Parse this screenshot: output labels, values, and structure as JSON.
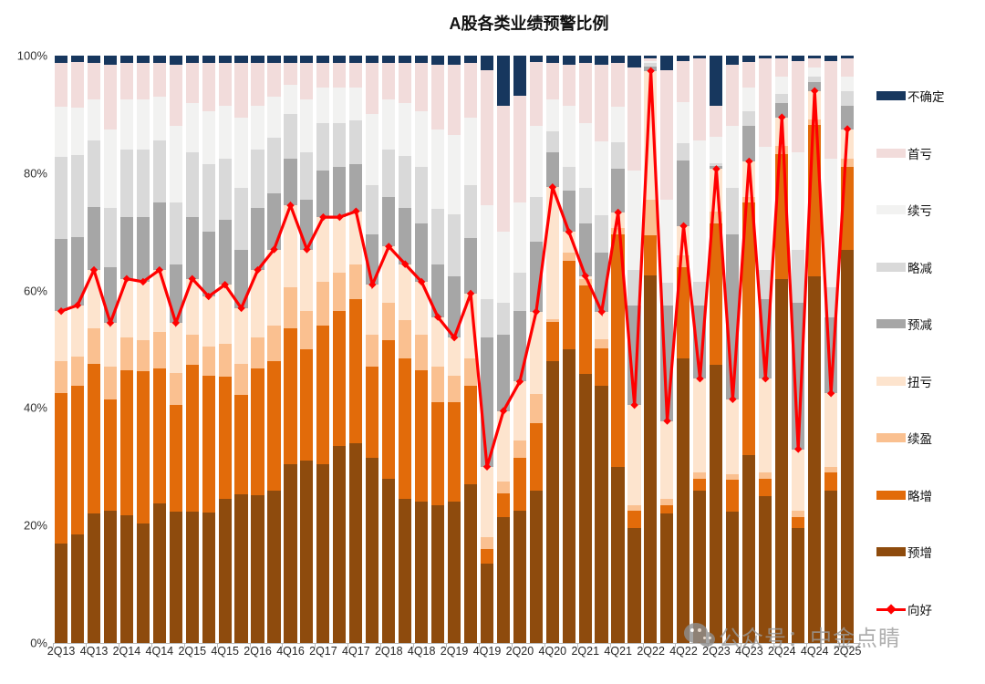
{
  "title": "A股各类业绩预警比例",
  "watermark": {
    "icon": "wechat-icon",
    "text": "公众号：中金点睛"
  },
  "chart_data": {
    "type": "bar",
    "variant": "stacked-100pct-with-line",
    "title": "A股各类业绩预警比例",
    "unit": "%",
    "ylim": [
      0,
      100
    ],
    "grid": false,
    "legend_position": "right",
    "y_tick_labels": [
      "0%",
      "20%",
      "40%",
      "60%",
      "80%",
      "100%"
    ],
    "y_tick_values": [
      0,
      20,
      40,
      60,
      80,
      100
    ],
    "x_tick_every": 2,
    "categories": [
      "2Q13",
      "3Q13",
      "4Q13",
      "1Q14",
      "2Q14",
      "3Q14",
      "4Q14",
      "1Q15",
      "2Q15",
      "3Q15",
      "4Q15",
      "1Q16",
      "2Q16",
      "3Q16",
      "4Q16",
      "1Q17",
      "2Q17",
      "3Q17",
      "4Q17",
      "1Q18",
      "2Q18",
      "3Q18",
      "4Q18",
      "1Q19",
      "2Q19",
      "3Q19",
      "4Q19",
      "1Q20",
      "2Q20",
      "3Q20",
      "4Q20",
      "1Q21",
      "2Q21",
      "3Q21",
      "4Q21",
      "1Q22",
      "2Q22",
      "3Q22",
      "4Q22",
      "1Q23",
      "2Q23",
      "3Q23",
      "4Q23",
      "1Q24",
      "2Q24",
      "3Q24",
      "4Q24",
      "1Q25",
      "2Q25"
    ],
    "series": [
      {
        "name": "预增",
        "color": "#8E4B0D",
        "values": [
          17,
          18.5,
          22,
          22.5,
          21.7,
          20.4,
          23.7,
          22.3,
          22.3,
          22.2,
          24.5,
          25.3,
          25.1,
          26,
          30.5,
          31,
          30.5,
          33.5,
          34,
          31.5,
          28,
          24.5,
          24,
          23.5,
          24,
          27,
          13.5,
          21.5,
          22.5,
          26,
          48,
          50,
          45.8,
          43.8,
          30,
          19.5,
          62.6,
          22,
          48.4,
          26,
          47.4,
          22.3,
          32,
          25,
          62,
          19.5,
          62.4,
          26,
          67
        ]
      },
      {
        "name": "略增",
        "color": "#E26B0A",
        "values": [
          25.5,
          25.3,
          25.5,
          19,
          24.7,
          25.8,
          23.1,
          18.3,
          25,
          23.3,
          20.9,
          17,
          21.7,
          22,
          23,
          19,
          23.5,
          23,
          24.5,
          15.5,
          23.5,
          24,
          22.5,
          17.5,
          17,
          16.8,
          2.5,
          4,
          9,
          11.5,
          6.6,
          15,
          15.1,
          6.4,
          39.6,
          3,
          6.8,
          1.5,
          15.6,
          2,
          24,
          5.5,
          43,
          3,
          21.2,
          2,
          25.8,
          3,
          14
        ]
      },
      {
        "name": "续盈",
        "color": "#FAC090",
        "values": [
          5.5,
          5,
          6,
          5.5,
          5.6,
          5.3,
          6.2,
          5.4,
          5.2,
          5,
          5.6,
          5.2,
          5.2,
          6,
          7,
          6.5,
          7.5,
          6.5,
          6,
          5.5,
          6.5,
          6.5,
          6,
          6,
          4.5,
          4.7,
          2,
          2,
          3,
          4.9,
          0.5,
          1.5,
          1,
          1.5,
          1,
          1,
          6,
          1,
          2,
          1,
          2,
          1,
          1,
          1,
          1.5,
          1,
          1,
          1,
          1.5
        ]
      },
      {
        "name": "扭亏",
        "color": "#FDE4CE",
        "values": [
          8.5,
          8.7,
          10,
          7.5,
          10,
          10,
          10.5,
          8.5,
          9.5,
          8.5,
          10,
          9.5,
          11.5,
          13,
          14,
          10.5,
          11,
          9.5,
          9,
          8.5,
          9.5,
          9.5,
          9,
          8.5,
          6.5,
          11,
          12,
          12,
          10,
          14,
          22.5,
          3.5,
          0.6,
          4.7,
          2.7,
          17,
          22,
          13.3,
          5,
          16,
          7.3,
          12.7,
          6,
          16,
          4.8,
          10.5,
          4.8,
          12.5,
          5
        ]
      },
      {
        "name": "预减",
        "color": "#A6A6A6",
        "values": [
          12.3,
          11.6,
          10.8,
          9.5,
          10.5,
          11,
          11.5,
          10,
          10.5,
          11,
          11,
          10,
          10.5,
          9.5,
          8,
          8.5,
          8,
          8.5,
          8,
          8.5,
          8.5,
          9.5,
          10,
          9,
          10.5,
          9.5,
          22,
          13,
          12,
          12,
          6,
          7,
          9,
          10,
          7.5,
          17,
          0.8,
          19.7,
          11.1,
          12.5,
          0.5,
          28,
          6,
          13.5,
          2.5,
          25,
          1.5,
          13,
          4
        ]
      },
      {
        "name": "略减",
        "color": "#D9D9D9",
        "values": [
          14,
          14,
          11.2,
          10,
          11.5,
          11.5,
          10.5,
          10.5,
          11,
          11.5,
          10.5,
          10.5,
          10,
          9.5,
          7.5,
          8,
          8,
          7.5,
          7.5,
          8.5,
          8,
          9,
          9.5,
          9.5,
          10.5,
          9,
          6.5,
          5.5,
          6.5,
          7.6,
          3.5,
          4,
          6,
          6.5,
          4.5,
          6,
          0.5,
          3.9,
          3,
          4,
          0.5,
          8,
          2.5,
          5,
          1.5,
          9,
          1,
          5,
          2.5
        ]
      },
      {
        "name": "续亏",
        "color": "#F2F2F1",
        "values": [
          8.5,
          8,
          7,
          13.5,
          8.5,
          8.5,
          7.5,
          13,
          8.5,
          9,
          9,
          12,
          7.5,
          7,
          5,
          9,
          6,
          6,
          5.5,
          12,
          8.5,
          9,
          9.5,
          13.5,
          13.5,
          11.5,
          16,
          12,
          12,
          12,
          5.5,
          10.5,
          11,
          12.5,
          6,
          17,
          0.4,
          14,
          7,
          24,
          4.5,
          10.5,
          4,
          21,
          3,
          16.5,
          1.5,
          22,
          2.5
        ]
      },
      {
        "name": "首亏",
        "color": "#F2DCDB",
        "values": [
          7.5,
          7.8,
          6.3,
          11,
          6.3,
          6.3,
          5.8,
          10.5,
          6.8,
          8.3,
          7.3,
          9.3,
          7.3,
          5.8,
          3.8,
          6.3,
          4.3,
          4.3,
          4.3,
          8.8,
          6.3,
          6.8,
          8.3,
          11,
          12,
          9.3,
          23,
          21.4,
          18.2,
          11,
          6.2,
          7,
          10.3,
          13.1,
          7.5,
          17.5,
          0.4,
          22.1,
          7,
          14,
          5.2,
          10.5,
          4.5,
          15,
          3,
          15.5,
          1.5,
          16.5,
          3
        ]
      },
      {
        "name": "不确定",
        "color": "#17375E",
        "values": [
          1.2,
          1.1,
          1.2,
          1.5,
          1.2,
          1.2,
          1.2,
          1.5,
          1.2,
          1.2,
          1.2,
          1.2,
          1.2,
          1.2,
          1.2,
          1.2,
          1.2,
          1.2,
          1.2,
          1.2,
          1.2,
          1.2,
          1.2,
          1.5,
          1.5,
          1.2,
          2.5,
          8.6,
          6.8,
          1,
          1.2,
          1.5,
          1.2,
          1.5,
          1.2,
          2,
          0.5,
          2.5,
          0.9,
          0.5,
          8.6,
          1.5,
          1,
          0.5,
          0.5,
          1,
          0.5,
          1,
          0.5
        ]
      }
    ],
    "line_series": {
      "name": "向好",
      "color": "#FF0000",
      "marker": "diamond",
      "values": [
        56.5,
        57.5,
        63.5,
        54.5,
        62,
        61.5,
        63.5,
        54.5,
        62,
        59,
        61,
        57,
        63.5,
        67,
        74.5,
        67,
        72.5,
        72.5,
        73.5,
        61,
        67.5,
        64.5,
        61.5,
        55.5,
        52,
        59.5,
        30,
        39.5,
        44.5,
        56.4,
        77.6,
        70,
        62.5,
        56.4,
        73.3,
        40.5,
        97.4,
        37.8,
        71,
        45,
        80.7,
        41.5,
        82,
        45,
        89.5,
        33,
        94,
        42.5,
        87.5
      ]
    },
    "legend_order_top_to_bottom": [
      "不确定",
      "首亏",
      "续亏",
      "略减",
      "预减",
      "扭亏",
      "续盈",
      "略增",
      "预增",
      "向好"
    ]
  }
}
